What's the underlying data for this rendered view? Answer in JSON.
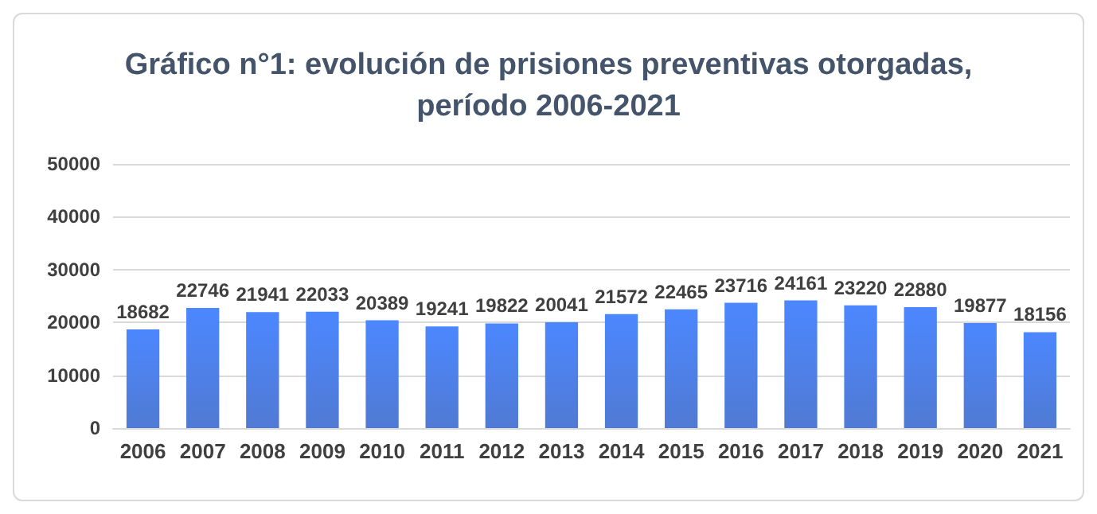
{
  "chart_data": {
    "type": "bar",
    "title": "Gráfico n°1: evolución de prisiones preventivas otorgadas,\nperíodo 2006-2021",
    "categories": [
      "2006",
      "2007",
      "2008",
      "2009",
      "2010",
      "2011",
      "2012",
      "2013",
      "2014",
      "2015",
      "2016",
      "2017",
      "2018",
      "2019",
      "2020",
      "2021"
    ],
    "values": [
      18682,
      22746,
      21941,
      22033,
      20389,
      19241,
      19822,
      20041,
      21572,
      22465,
      23716,
      24161,
      23220,
      22880,
      19877,
      18156
    ],
    "color": "#3d6ccf",
    "ylim": [
      0,
      50000
    ],
    "yticks": [
      0,
      10000,
      20000,
      30000,
      40000,
      50000
    ],
    "grid": "y",
    "data_labels": true
  }
}
